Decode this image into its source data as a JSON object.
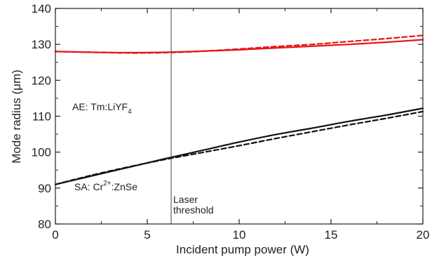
{
  "chart_data": {
    "type": "line",
    "title": "",
    "xlabel": "Incident pump power (W)",
    "ylabel": "Mode radius (",
    "ylabel_unit": "μ",
    "ylabel_tail": "m)",
    "xlim": [
      0,
      20
    ],
    "ylim": [
      80,
      140
    ],
    "xticks": [
      0,
      5,
      10,
      15,
      20
    ],
    "yticks": [
      80,
      90,
      100,
      110,
      120,
      130,
      140
    ],
    "grid": false,
    "threshold_x": 6.3,
    "colors": {
      "ae": "#e8141b",
      "sa": "#111111",
      "threshold": "#444444"
    },
    "series": [
      {
        "x": [
          0,
          2,
          4,
          6,
          8,
          10,
          12,
          14,
          16,
          18,
          20
        ],
        "y": [
          128.0,
          127.8,
          127.7,
          127.8,
          128.1,
          128.5,
          129.0,
          129.5,
          130.0,
          130.6,
          131.3
        ],
        "color": "#e8141b",
        "style": "solid"
      },
      {
        "x": [
          0,
          2,
          4,
          6,
          8,
          10,
          12,
          14,
          16,
          18,
          20
        ],
        "y": [
          128.0,
          127.8,
          127.6,
          127.7,
          128.1,
          128.7,
          129.4,
          130.0,
          130.8,
          131.6,
          132.5
        ],
        "color": "#e8141b",
        "style": "dashed"
      },
      {
        "x": [
          0,
          2,
          4,
          6,
          8,
          10,
          12,
          14,
          16,
          18,
          20
        ],
        "y": [
          91.0,
          93.4,
          95.8,
          98.2,
          100.5,
          102.8,
          104.9,
          106.7,
          108.6,
          110.3,
          112.2
        ],
        "color": "#111111",
        "style": "solid"
      },
      {
        "x": [
          0,
          2,
          4,
          6,
          8,
          10,
          12,
          14,
          16,
          18,
          20
        ],
        "y": [
          91.0,
          93.6,
          95.9,
          98.0,
          99.9,
          101.8,
          103.8,
          105.7,
          107.6,
          109.4,
          111.3
        ],
        "color": "#111111",
        "style": "dashed"
      }
    ],
    "annotations": {
      "ae_prefix": "AE: Tm:LiYF",
      "ae_sub": "4",
      "sa_prefix": "SA: Cr",
      "sa_sup": "2+",
      "sa_suffix": ":ZnSe",
      "laser_line1": "Laser",
      "laser_line2": "threshold"
    }
  }
}
